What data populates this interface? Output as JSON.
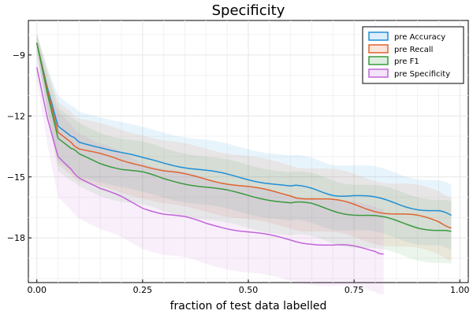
{
  "chart_data": {
    "type": "line",
    "title": "Specificity",
    "xlabel": "fraction of test data labelled",
    "ylabel": "",
    "xlim": [
      -0.02,
      1.02
    ],
    "ylim": [
      -20.2,
      -7.3
    ],
    "xticks": [
      0.0,
      0.25,
      0.5,
      0.75,
      1.0
    ],
    "xtick_labels": [
      "0.00",
      "0.25",
      "0.50",
      "0.75",
      "1.00"
    ],
    "yticks": [
      -9,
      -12,
      -15,
      -18
    ],
    "ytick_labels": [
      "−9",
      "−12",
      "−15",
      "−18"
    ],
    "grid": true,
    "legend_position": "top-right",
    "series": [
      {
        "name": "pre Accuracy",
        "color": "#1f8fd6",
        "band_lower": 1.7,
        "band_upper": 1.5,
        "x": [
          0.0,
          0.025,
          0.05,
          0.075,
          0.1,
          0.15,
          0.2,
          0.25,
          0.3,
          0.35,
          0.4,
          0.45,
          0.5,
          0.55,
          0.6,
          0.65,
          0.7,
          0.75,
          0.8,
          0.85,
          0.9,
          0.95,
          0.98
        ],
        "values": [
          -8.4,
          -10.6,
          -12.5,
          -12.9,
          -13.3,
          -13.5,
          -13.8,
          -14.1,
          -14.3,
          -14.5,
          -14.7,
          -14.9,
          -15.1,
          -15.3,
          -15.5,
          -15.6,
          -15.8,
          -15.9,
          -16.1,
          -16.3,
          -16.5,
          -16.7,
          -17.0
        ]
      },
      {
        "name": "pre Recall",
        "color": "#e0642e",
        "band_lower": 1.6,
        "band_upper": 1.5,
        "x": [
          0.0,
          0.025,
          0.05,
          0.075,
          0.1,
          0.15,
          0.2,
          0.25,
          0.3,
          0.35,
          0.4,
          0.45,
          0.5,
          0.55,
          0.6,
          0.65,
          0.7,
          0.75,
          0.8,
          0.85,
          0.9,
          0.95,
          0.98
        ],
        "values": [
          -8.4,
          -10.7,
          -12.8,
          -13.2,
          -13.6,
          -13.9,
          -14.2,
          -14.4,
          -14.7,
          -14.9,
          -15.1,
          -15.3,
          -15.5,
          -15.7,
          -15.9,
          -16.0,
          -16.2,
          -16.4,
          -16.6,
          -16.8,
          -17.0,
          -17.2,
          -17.4
        ]
      },
      {
        "name": "pre F1",
        "color": "#3a9a3e",
        "band_lower": 1.6,
        "band_upper": 1.5,
        "x": [
          0.0,
          0.025,
          0.05,
          0.075,
          0.1,
          0.15,
          0.2,
          0.25,
          0.3,
          0.35,
          0.4,
          0.45,
          0.5,
          0.55,
          0.6,
          0.65,
          0.7,
          0.75,
          0.8,
          0.85,
          0.9,
          0.95,
          0.98
        ],
        "values": [
          -8.4,
          -10.9,
          -13.1,
          -13.5,
          -13.9,
          -14.3,
          -14.6,
          -14.8,
          -15.1,
          -15.3,
          -15.5,
          -15.7,
          -15.9,
          -16.1,
          -16.3,
          -16.4,
          -16.6,
          -16.8,
          -17.0,
          -17.2,
          -17.4,
          -17.6,
          -17.8
        ]
      },
      {
        "name": "pre Specificity",
        "color": "#c065d8",
        "band_lower": 2.0,
        "band_upper": 2.2,
        "x": [
          0.0,
          0.025,
          0.05,
          0.075,
          0.1,
          0.15,
          0.2,
          0.25,
          0.3,
          0.35,
          0.4,
          0.45,
          0.5,
          0.55,
          0.6,
          0.65,
          0.7,
          0.75,
          0.8,
          0.82
        ],
        "values": [
          -9.6,
          -12.1,
          -14.0,
          -14.5,
          -15.0,
          -15.6,
          -16.0,
          -16.5,
          -16.8,
          -17.0,
          -17.3,
          -17.5,
          -17.7,
          -17.9,
          -18.1,
          -18.2,
          -18.4,
          -18.5,
          -18.6,
          -18.7
        ]
      }
    ]
  }
}
